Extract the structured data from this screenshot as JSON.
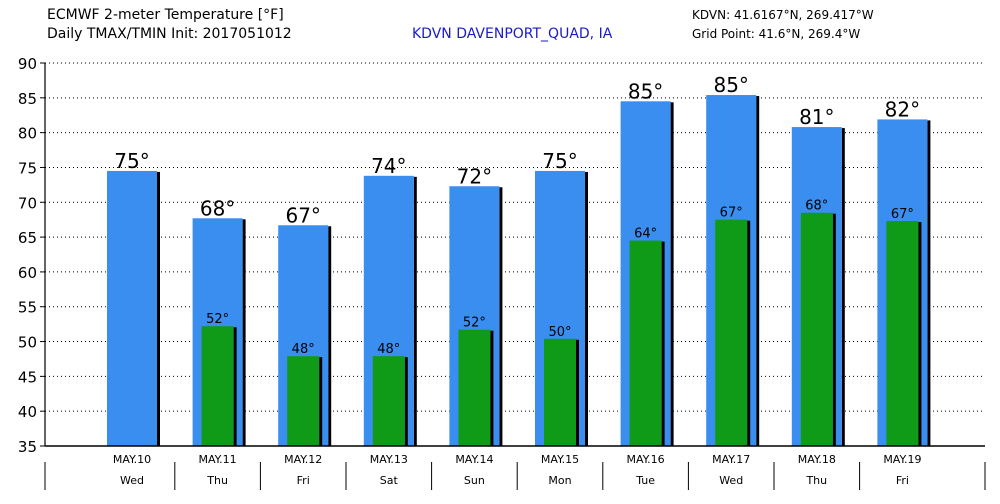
{
  "header": {
    "title_line1": "ECMWF 2-meter Temperature [°F]",
    "title_line2": "Daily TMAX/TMIN Init: 2017051012",
    "station": "KDVN DAVENPORT_QUAD, IA",
    "coords_line1": "KDVN: 41.6167°N, 269.417°W",
    "coords_line2": "Grid Point: 41.6°N, 269.4°W"
  },
  "colors": {
    "tmax": "#3a8ef0",
    "tmin": "#0f9a17",
    "station_text": "#1a1acd",
    "bar_shadow": "#000000"
  },
  "chart_data": {
    "type": "bar",
    "title": "ECMWF 2-meter Temperature [°F]",
    "ylim": [
      35,
      90
    ],
    "yticks": [
      35,
      40,
      45,
      50,
      55,
      60,
      65,
      70,
      75,
      80,
      85,
      90
    ],
    "grid": true,
    "categories": [
      "MAY.10",
      "MAY.11",
      "MAY.12",
      "MAY.13",
      "MAY.14",
      "MAY.15",
      "MAY.16",
      "MAY.17",
      "MAY.18",
      "MAY.19"
    ],
    "weekdays": [
      "Wed",
      "Thu",
      "Fri",
      "Sat",
      "Sun",
      "Mon",
      "Tue",
      "Wed",
      "Thu",
      "Fri"
    ],
    "series": [
      {
        "name": "TMAX",
        "values": [
          74.5,
          67.7,
          66.7,
          73.8,
          72.3,
          74.5,
          84.5,
          85.4,
          80.8,
          81.9
        ],
        "labels": [
          "75°",
          "68°",
          "67°",
          "74°",
          "72°",
          "75°",
          "85°",
          "85°",
          "81°",
          "82°"
        ]
      },
      {
        "name": "TMIN",
        "values": [
          null,
          52.2,
          47.9,
          47.9,
          51.7,
          50.4,
          64.5,
          67.5,
          68.5,
          67.3
        ],
        "labels": [
          "",
          "52°",
          "48°",
          "48°",
          "52°",
          "50°",
          "64°",
          "67°",
          "68°",
          "67°"
        ]
      }
    ]
  }
}
